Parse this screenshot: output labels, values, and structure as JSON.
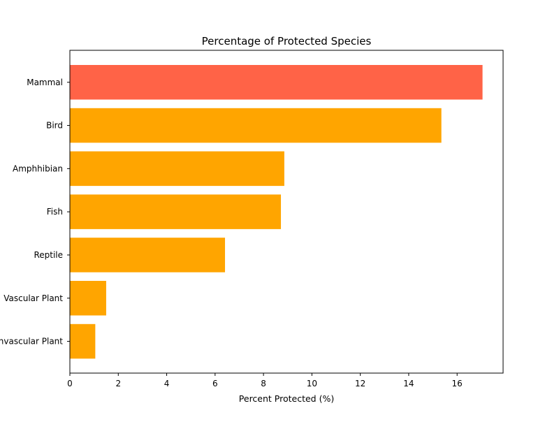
{
  "chart_data": {
    "type": "bar",
    "orientation": "horizontal",
    "title": "Percentage of Protected Species",
    "xlabel": "Percent Protected (%)",
    "ylabel": "",
    "categories": [
      "Mammal",
      "Bird",
      "Amphhibian",
      "Fish",
      "Reptile",
      "Vascular Plant",
      "Nonvascular Plant"
    ],
    "values": [
      17.05,
      15.35,
      8.86,
      8.72,
      6.41,
      1.5,
      1.05
    ],
    "xlim": [
      0,
      17.9
    ],
    "xticks": [
      0,
      2,
      4,
      6,
      8,
      10,
      12,
      14,
      16
    ],
    "grid": false,
    "legend": "none",
    "colors": {
      "highlight": "#ff6347",
      "default": "#ffa500",
      "axis": "#000000",
      "background": "#ffffff"
    },
    "highlight_index": 0
  }
}
